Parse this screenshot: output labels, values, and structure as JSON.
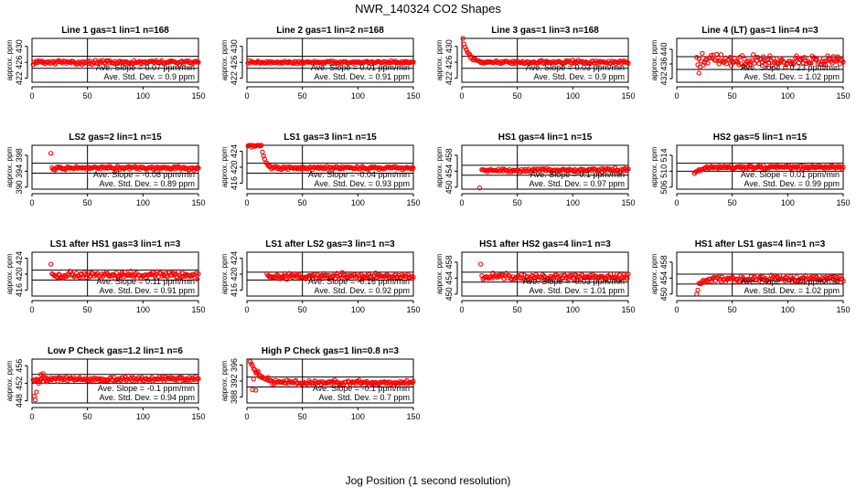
{
  "figure": {
    "title": "NWR_140324  CO2 Shapes",
    "xlabel": "Jog Position (1 second resolution)"
  },
  "colors": {
    "points": "#ff0000",
    "axes": "#000000",
    "background": "#ffffff"
  },
  "chart_data": [
    {
      "type": "scatter",
      "title": "Line 1 gas=1 lin=1 n=168",
      "ylabel": "approx. ppm",
      "xlim": [
        0,
        150
      ],
      "ylim": [
        421,
        432
      ],
      "xticks": [
        0,
        50,
        100,
        150
      ],
      "yticks": [
        422,
        426,
        430
      ],
      "hlines": [
        427.5,
        424.5
      ],
      "vline": 50,
      "slope_text": "Ave. Slope = 0.07  ppm/min",
      "sd_text": "Ave. Std. Dev. = 0.9  ppm",
      "shape": {
        "mode": "flat",
        "base": 426,
        "noise": 0.3
      }
    },
    {
      "type": "scatter",
      "title": "Line 2 gas=1 lin=2 n=168",
      "ylabel": "approx. ppm",
      "xlim": [
        0,
        150
      ],
      "ylim": [
        421,
        432
      ],
      "xticks": [
        0,
        50,
        100,
        150
      ],
      "yticks": [
        422,
        426,
        430
      ],
      "hlines": [
        427.5,
        424.5
      ],
      "vline": 50,
      "slope_text": "Ave. Slope = 0.01  ppm/min",
      "sd_text": "Ave. Std. Dev. = 0.91  ppm",
      "shape": {
        "mode": "flat",
        "base": 426,
        "noise": 0.2
      }
    },
    {
      "type": "scatter",
      "title": "Line 3 gas=1 lin=3 n=168",
      "ylabel": "approx. ppm",
      "xlim": [
        0,
        150
      ],
      "ylim": [
        421,
        432
      ],
      "xticks": [
        0,
        50,
        100,
        150
      ],
      "yticks": [
        422,
        426,
        430
      ],
      "hlines": [
        427.5,
        424.5
      ],
      "vline": 50,
      "slope_text": "Ave. Slope = 0.03  ppm/min",
      "sd_text": "Ave. Std. Dev. = 0.9  ppm",
      "shape": {
        "mode": "decay",
        "base": 426,
        "noise": 0.25,
        "start": 432,
        "tau": 5,
        "from": 1
      }
    },
    {
      "type": "scatter",
      "title": "Line 4 (LT) gas=1 lin=4 n=3",
      "ylabel": "approx. ppm",
      "xlim": [
        0,
        150
      ],
      "ylim": [
        431,
        443
      ],
      "xticks": [
        0,
        50,
        100,
        150
      ],
      "yticks": [
        432,
        436,
        440
      ],
      "hlines": [
        438,
        434.5
      ],
      "vline": 50,
      "slope_text": "Ave. Slope = 0.23  ppm/min",
      "sd_text": "Ave. Std. Dev. = 1.02  ppm",
      "shape": {
        "mode": "flat",
        "base": 437,
        "noise": 0.9,
        "from": 18,
        "outlier": [
          20,
          433.5
        ]
      }
    },
    {
      "type": "scatter",
      "title": "LS2 gas=2 lin=1 n=15",
      "ylabel": "approx. ppm",
      "xlim": [
        0,
        150
      ],
      "ylim": [
        389.5,
        400.5
      ],
      "xticks": [
        0,
        50,
        100,
        150
      ],
      "yticks": [
        390,
        394,
        398
      ],
      "hlines": [
        396,
        393.5
      ],
      "vline": 50,
      "slope_text": "Ave. Slope = -0.08  ppm/min",
      "sd_text": "Ave. Std. Dev. = 0.89  ppm",
      "shape": {
        "mode": "flat",
        "base": 394.8,
        "noise": 0.25,
        "from": 18,
        "outlier": [
          17,
          398.5
        ]
      }
    },
    {
      "type": "scatter",
      "title": "LS1 gas=3 lin=1 n=15",
      "ylabel": "approx. ppm",
      "xlim": [
        0,
        150
      ],
      "ylim": [
        414.5,
        425.5
      ],
      "xticks": [
        0,
        50,
        100,
        150
      ],
      "yticks": [
        416,
        420,
        424
      ],
      "hlines": [
        421,
        418.5
      ],
      "vline": 50,
      "slope_text": "Ave. Slope = -0.04  ppm/min",
      "sd_text": "Ave. Std. Dev. = 0.93  ppm",
      "shape": {
        "mode": "decay",
        "base": 419.8,
        "noise": 0.25,
        "start": 425.5,
        "tau": 3,
        "from": 1,
        "hold": 12
      }
    },
    {
      "type": "scatter",
      "title": "HS1 gas=4 lin=1 n=15",
      "ylabel": "approx. ppm",
      "xlim": [
        0,
        150
      ],
      "ylim": [
        449.5,
        460.5
      ],
      "xticks": [
        0,
        50,
        100,
        150
      ],
      "yticks": [
        450,
        454,
        458
      ],
      "hlines": [
        455.5,
        453
      ],
      "vline": 50,
      "slope_text": "Ave. Slope = 0.1  ppm/min",
      "sd_text": "Ave. Std. Dev. = 0.97  ppm",
      "shape": {
        "mode": "flat",
        "base": 454.3,
        "noise": 0.25,
        "from": 18,
        "outlier": [
          16,
          449.8
        ]
      }
    },
    {
      "type": "scatter",
      "title": "HS2 gas=5 lin=1 n=15",
      "ylabel": "approx. ppm",
      "xlim": [
        0,
        150
      ],
      "ylim": [
        505.5,
        516.5
      ],
      "xticks": [
        0,
        50,
        100,
        150
      ],
      "yticks": [
        506,
        510,
        514
      ],
      "hlines": [
        512,
        510
      ],
      "vline": 50,
      "slope_text": "Ave. Slope = 0.01  ppm/min",
      "sd_text": "Ave. Std. Dev. = 0.99  ppm",
      "shape": {
        "mode": "rise",
        "base": 511,
        "noise": 0.25,
        "start": 509.5,
        "tau": 5,
        "from": 16
      }
    },
    {
      "type": "scatter",
      "title": "LS1 after HS1 gas=3 lin=1 n=3",
      "ylabel": "approx. ppm",
      "xlim": [
        0,
        150
      ],
      "ylim": [
        414.5,
        425.5
      ],
      "xticks": [
        0,
        50,
        100,
        150
      ],
      "yticks": [
        416,
        420,
        424
      ],
      "hlines": [
        421,
        418.5
      ],
      "vline": 50,
      "slope_text": "Ave. Slope = 0.11  ppm/min",
      "sd_text": "Ave. Std. Dev. = 0.91  ppm",
      "shape": {
        "mode": "flat",
        "base": 419.8,
        "noise": 0.55,
        "from": 18,
        "outlier": [
          17,
          422.5
        ]
      }
    },
    {
      "type": "scatter",
      "title": "LS1 after LS2 gas=3 lin=1 n=3",
      "ylabel": "approx. ppm",
      "xlim": [
        0,
        150
      ],
      "ylim": [
        414.5,
        425.5
      ],
      "xticks": [
        0,
        50,
        100,
        150
      ],
      "yticks": [
        416,
        420,
        424
      ],
      "hlines": [
        420.5,
        418.5
      ],
      "vline": 50,
      "slope_text": "Ave. Slope = -0.16  ppm/min",
      "sd_text": "Ave. Std. Dev. = 0.92  ppm",
      "shape": {
        "mode": "flat",
        "base": 419.5,
        "noise": 0.45,
        "from": 18
      }
    },
    {
      "type": "scatter",
      "title": "HS1 after HS2 gas=4 lin=1 n=3",
      "ylabel": "approx. ppm",
      "xlim": [
        0,
        150
      ],
      "ylim": [
        449.5,
        460.5
      ],
      "xticks": [
        0,
        50,
        100,
        150
      ],
      "yticks": [
        450,
        454,
        458
      ],
      "hlines": [
        455.5,
        453
      ],
      "vline": 50,
      "slope_text": "Ave. Slope = -0.03  ppm/min",
      "sd_text": "Ave. Std. Dev. = 1.01  ppm",
      "shape": {
        "mode": "flat",
        "base": 454.3,
        "noise": 0.45,
        "from": 18,
        "outlier": [
          17,
          457.5
        ]
      }
    },
    {
      "type": "scatter",
      "title": "HS1 after LS1 gas=4 lin=1 n=3",
      "ylabel": "approx. ppm",
      "xlim": [
        0,
        150
      ],
      "ylim": [
        449.5,
        460.5
      ],
      "xticks": [
        0,
        50,
        100,
        150
      ],
      "yticks": [
        450,
        454,
        458
      ],
      "hlines": [
        455,
        452.5
      ],
      "vline": 50,
      "slope_text": "Ave. Slope = 0.24  ppm/min",
      "sd_text": "Ave. Std. Dev. = 1.02  ppm",
      "shape": {
        "mode": "rise",
        "base": 453.8,
        "noise": 0.5,
        "start": 450.8,
        "tau": 3,
        "from": 18
      }
    },
    {
      "type": "scatter",
      "title": "Low P Check gas=1.2 lin=1 n=6",
      "ylabel": "approx. ppm",
      "xlim": [
        0,
        150
      ],
      "ylim": [
        447.5,
        457.5
      ],
      "xticks": [
        0,
        50,
        100,
        150
      ],
      "yticks": [
        448,
        452,
        456
      ],
      "hlines": [
        454,
        452
      ],
      "vline": 50,
      "slope_text": "Ave. Slope = -0.1  ppm/min",
      "sd_text": "Ave. Std. Dev. = 0.94  ppm",
      "shape": {
        "mode": "flat",
        "base": 453,
        "noise": 0.35,
        "from": 1,
        "extras": [
          [
            2,
            449
          ],
          [
            3,
            448.2
          ],
          [
            4,
            450
          ],
          [
            6,
            452
          ],
          [
            8,
            454
          ],
          [
            10,
            454.2
          ],
          [
            13,
            452.5
          ]
        ]
      }
    },
    {
      "type": "scatter",
      "title": "High P Check gas=1 lin=0.8 n=3",
      "ylabel": "approx. ppm",
      "xlim": [
        0,
        150
      ],
      "ylim": [
        386.5,
        397.5
      ],
      "xticks": [
        0,
        50,
        100,
        150
      ],
      "yticks": [
        388,
        392,
        396
      ],
      "hlines": [
        393,
        390.5
      ],
      "vline": 50,
      "slope_text": "Ave. Slope = -0.1  ppm/min",
      "sd_text": "Ave. Std. Dev. = 0.7  ppm",
      "shape": {
        "mode": "decay",
        "base": 391.6,
        "noise": 0.35,
        "start": 396.8,
        "tau": 8,
        "from": 3,
        "extras": [
          [
            5,
            389.8
          ],
          [
            8,
            389.7
          ],
          [
            10,
            394.5
          ],
          [
            6,
            392.5
          ]
        ]
      }
    }
  ]
}
